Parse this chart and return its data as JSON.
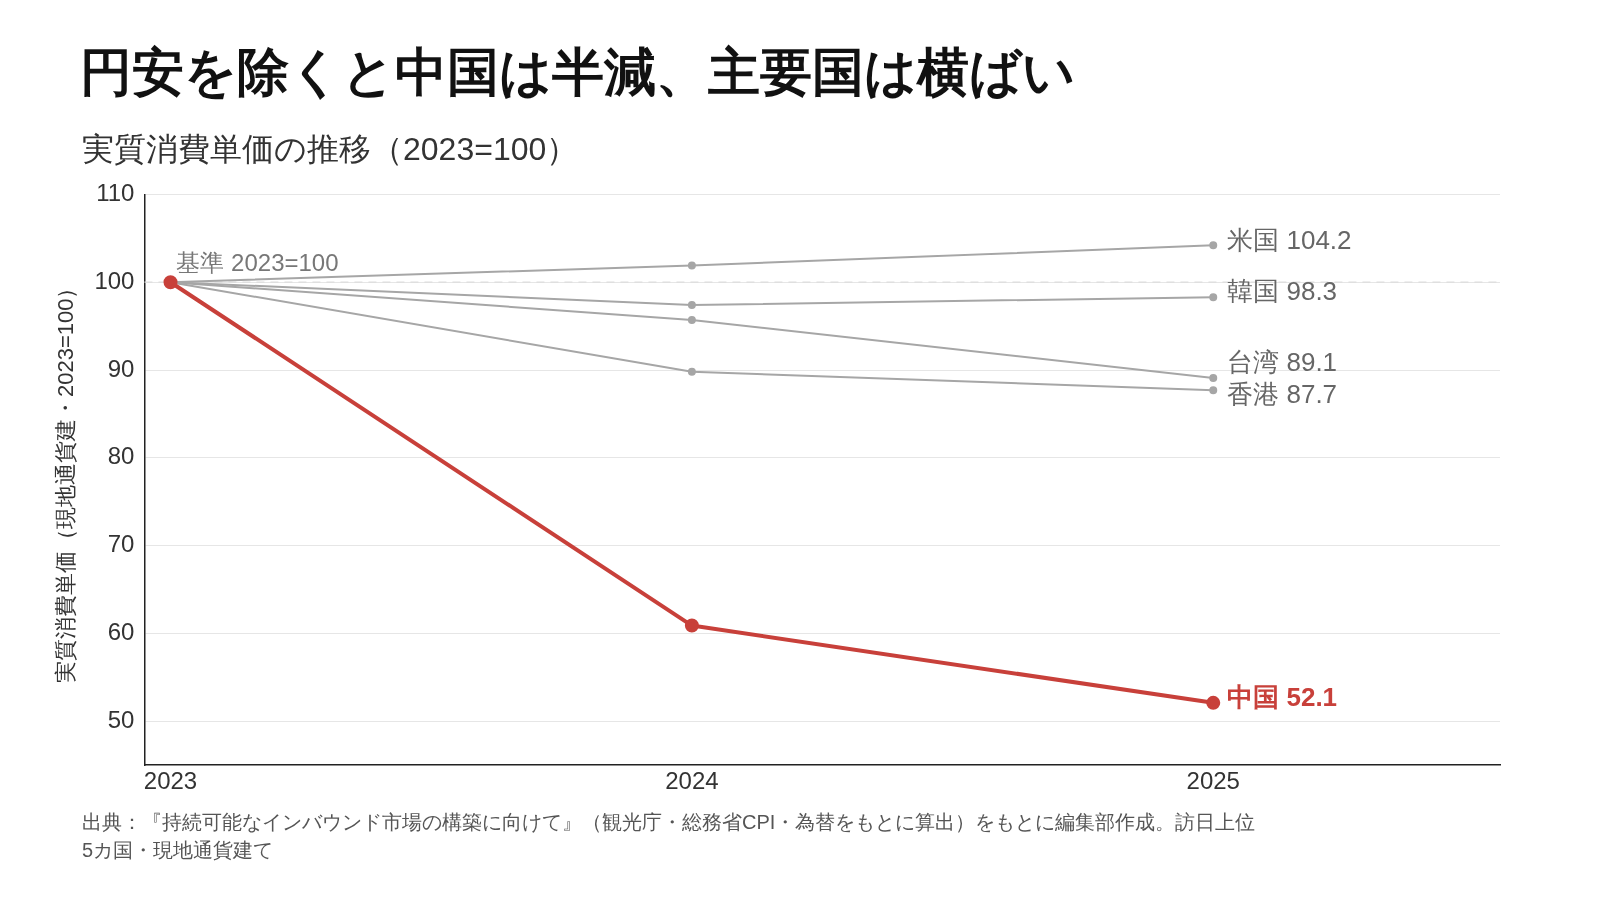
{
  "chart_data": {
    "type": "line",
    "title": "円安を除くと中国は半減、主要国は横ばい",
    "subtitle": "実質消費単価の推移（2023=100）",
    "ylabel": "実質消費単価（現地通貨建・2023=100）",
    "x": [
      2023,
      2024,
      2025
    ],
    "xlim": [
      2022.95,
      2025.55
    ],
    "xticks": [
      2023,
      2024,
      2025
    ],
    "ylim": [
      45,
      110
    ],
    "yticks": [
      50,
      60,
      70,
      80,
      90,
      100,
      110
    ],
    "series": [
      {
        "name": "米国",
        "color": "#a6a6a6",
        "values": [
          100,
          101.9,
          104.2
        ],
        "value_labels": [
          null,
          null,
          "104.2"
        ]
      },
      {
        "name": "韓国",
        "color": "#a6a6a6",
        "values": [
          100,
          97.4,
          98.3
        ],
        "value_labels": [
          null,
          null,
          "98.3"
        ]
      },
      {
        "name": "台湾",
        "color": "#a6a6a6",
        "values": [
          100,
          95.7,
          89.1
        ],
        "value_labels": [
          null,
          null,
          "89.1"
        ]
      },
      {
        "name": "香港",
        "color": "#a6a6a6",
        "values": [
          100,
          89.8,
          87.7
        ],
        "value_labels": [
          null,
          null,
          "87.7"
        ]
      },
      {
        "name": "中国",
        "color": "#c8403a",
        "values": [
          100,
          60.9,
          52.1
        ],
        "value_labels": [
          null,
          null,
          "52.1"
        ]
      }
    ],
    "ref_lines": [
      {
        "axis": "y",
        "value": 100,
        "label": "基準 2023=100",
        "color": "#dddddd",
        "line_style": "dashed"
      }
    ],
    "grid": "y",
    "legend": false,
    "marker": "circle",
    "line_style": "solid",
    "annotations": [
      "出典：『持続可能なインバウンド市場の構築に向けて』（観光庁・総務省CPI・為替をもとに算出）をもとに編集部作成。訪日上位5カ国・現地通貨建て"
    ]
  }
}
